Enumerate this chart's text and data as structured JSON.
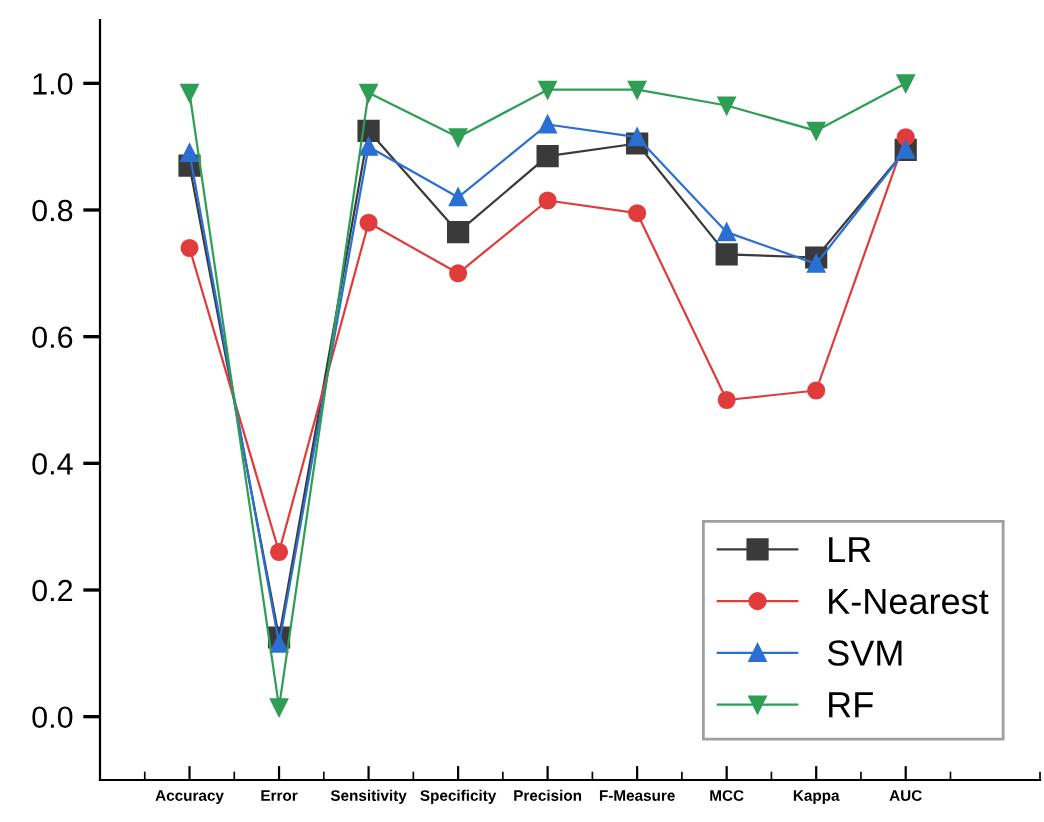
{
  "chart_data": {
    "type": "line",
    "categories": [
      "Accuracy",
      "Error",
      "Sensitivity",
      "Specificity",
      "Precision",
      "F-Measure",
      "MCC",
      "Kappa",
      "AUC"
    ],
    "series": [
      {
        "name": "LR",
        "color": "#3a3a3a",
        "marker": "square",
        "values": [
          0.87,
          0.125,
          0.925,
          0.765,
          0.885,
          0.905,
          0.73,
          0.725,
          0.895
        ]
      },
      {
        "name": "K-Nearest",
        "color": "#e03c3c",
        "marker": "circle",
        "values": [
          0.74,
          0.26,
          0.78,
          0.7,
          0.815,
          0.795,
          0.5,
          0.515,
          0.915
        ]
      },
      {
        "name": "SVM",
        "color": "#2a6fd1",
        "marker": "triangle",
        "values": [
          0.89,
          0.115,
          0.9,
          0.82,
          0.935,
          0.915,
          0.765,
          0.715,
          0.895
        ]
      },
      {
        "name": "RF",
        "color": "#2e9e55",
        "marker": "triangle_down",
        "values": [
          0.985,
          0.015,
          0.985,
          0.915,
          0.99,
          0.99,
          0.965,
          0.925,
          1.0
        ]
      }
    ],
    "ylim": [
      -0.1,
      1.1
    ],
    "yticks": [
      {
        "value": 0.0,
        "label": "0.0"
      },
      {
        "value": 0.2,
        "label": "0.2"
      },
      {
        "value": 0.4,
        "label": "0.4"
      },
      {
        "value": 0.6,
        "label": "0.6"
      },
      {
        "value": 0.8,
        "label": "0.8"
      },
      {
        "value": 1.0,
        "label": "1.0"
      }
    ],
    "grid": false,
    "legend": "bottom right",
    "line_style": "solid"
  }
}
